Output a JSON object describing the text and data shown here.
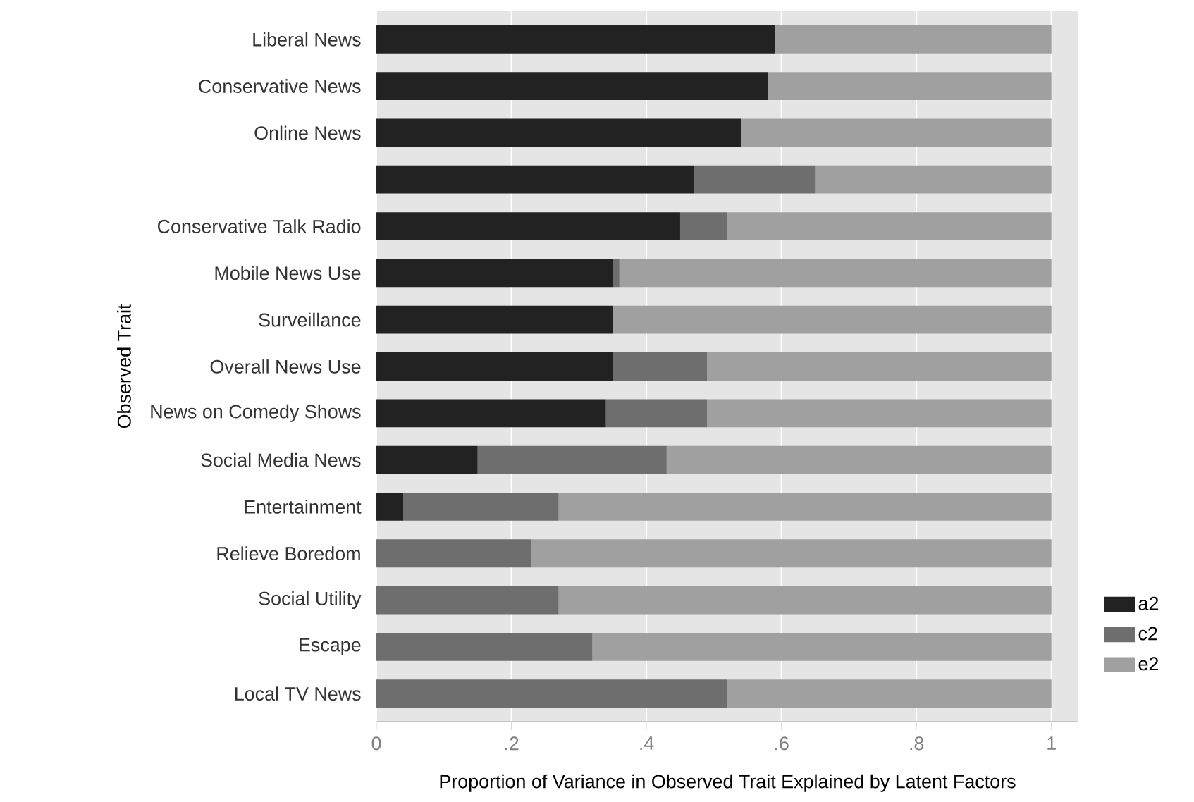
{
  "chart_data": {
    "type": "bar",
    "orientation": "horizontal",
    "stacked": true,
    "xlabel": "Proportion of Variance in Observed Trait Explained by Latent Factors",
    "ylabel": "Observed Trait",
    "categories": [
      "Liberal News",
      "Conservative News",
      "Online News",
      null,
      "Conservative Talk Radio",
      "Mobile News Use",
      "Surveillance",
      "Overall News Use",
      "News on Comedy Shows",
      "Social Media News",
      "Entertainment",
      "Relieve Boredom",
      "Social Utility",
      "Escape",
      "Local TV News"
    ],
    "series": [
      {
        "name": "a2",
        "color": "#222222",
        "values": [
          0.59,
          0.58,
          0.54,
          0.47,
          0.45,
          0.35,
          0.35,
          0.35,
          0.34,
          0.15,
          0.04,
          0,
          0,
          0,
          0
        ]
      },
      {
        "name": "c2",
        "color": "#6e6e6e",
        "values": [
          0,
          0,
          0,
          0.18,
          0.07,
          0.01,
          0,
          0.14,
          0.15,
          0.28,
          0.23,
          0.23,
          0.27,
          0.32,
          0.52
        ]
      },
      {
        "name": "e2",
        "color": "#a0a0a0",
        "values": [
          0.41,
          0.42,
          0.46,
          0.35,
          0.48,
          0.64,
          0.65,
          0.51,
          0.51,
          0.57,
          0.73,
          0.77,
          0.73,
          0.68,
          0.48
        ]
      }
    ],
    "xlim": [
      0,
      1.04
    ],
    "xticks": [
      0,
      {
        "value": 0.2,
        "label": ".2"
      },
      {
        "value": 0.4,
        "label": ".4"
      },
      {
        "value": 0.6,
        "label": ".6"
      },
      {
        "value": 0.8,
        "label": ".8"
      },
      1
    ],
    "grid": "x",
    "legend": "bottom right"
  }
}
